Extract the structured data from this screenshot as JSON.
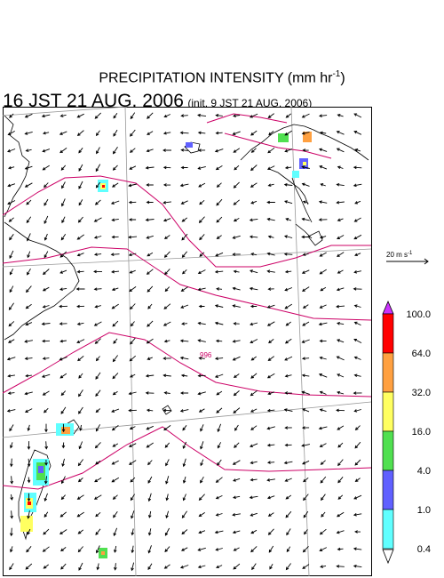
{
  "title": "PRECIPITATION INTENSITY (mm hr",
  "title_unit_sup": "-1",
  "title_close": ")",
  "valid_time": "16 JST 21 AUG. 2006",
  "init_time": "(init. 9 JST 21 AUG. 2006)",
  "wind_scale_label": "20 m s",
  "wind_scale_sup": "-1",
  "contour_label": "996",
  "colorbar": {
    "labels": [
      "100.0",
      "64.0",
      "32.0",
      "16.0",
      "4.0",
      "1.0",
      "0.4"
    ],
    "colors": [
      "#ff0000",
      "#ffa040",
      "#ffff60",
      "#50e050",
      "#6060ff",
      "#60ffff"
    ],
    "top_arrow_color": "#cc33ff"
  },
  "colors": {
    "contour": "#cc0066",
    "grid": "#999999",
    "coast": "#000000"
  }
}
